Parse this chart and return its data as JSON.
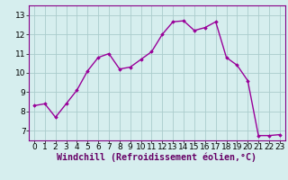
{
  "x": [
    0,
    1,
    2,
    3,
    4,
    5,
    6,
    7,
    8,
    9,
    10,
    11,
    12,
    13,
    14,
    15,
    16,
    17,
    18,
    19,
    20,
    21,
    22,
    23
  ],
  "y": [
    8.3,
    8.4,
    7.7,
    8.4,
    9.1,
    10.1,
    10.8,
    11.0,
    10.2,
    10.3,
    10.7,
    11.1,
    12.0,
    12.65,
    12.7,
    12.2,
    12.35,
    12.65,
    10.8,
    10.4,
    9.6,
    6.75,
    6.75,
    6.8
  ],
  "line_color": "#990099",
  "marker": "D",
  "marker_size": 1.8,
  "bg_color": "#d6eeee",
  "grid_color": "#aacccc",
  "xlabel": "Windchill (Refroidissement éolien,°C)",
  "xlim": [
    -0.5,
    23.5
  ],
  "ylim": [
    6.5,
    13.5
  ],
  "yticks": [
    7,
    8,
    9,
    10,
    11,
    12,
    13
  ],
  "xticks": [
    0,
    1,
    2,
    3,
    4,
    5,
    6,
    7,
    8,
    9,
    10,
    11,
    12,
    13,
    14,
    15,
    16,
    17,
    18,
    19,
    20,
    21,
    22,
    23
  ],
  "tick_label_size": 6.5,
  "xlabel_size": 7.2,
  "spine_color": "#880088",
  "line_width": 1.0
}
